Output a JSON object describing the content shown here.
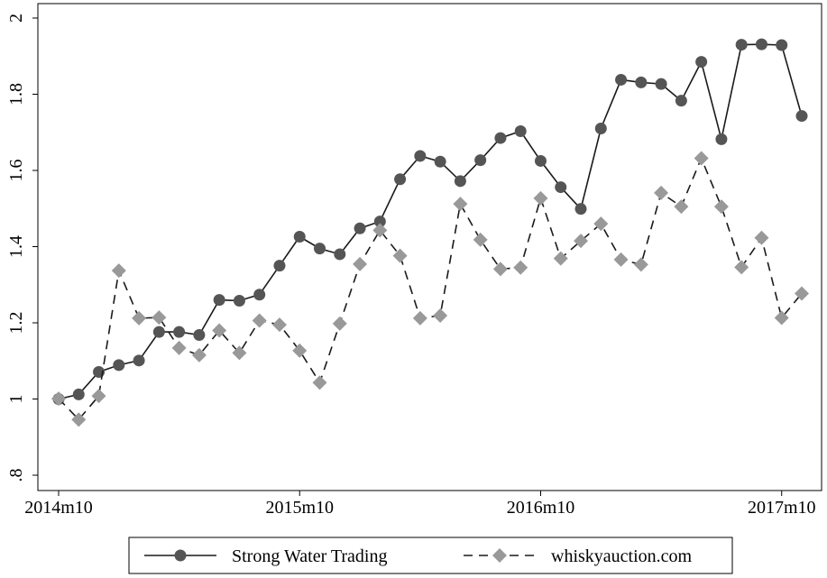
{
  "chart_data": {
    "type": "line",
    "title": "",
    "xlabel": "",
    "ylabel": "",
    "x": [
      "2014m10",
      "2014m11",
      "2014m12",
      "2015m1",
      "2015m2",
      "2015m3",
      "2015m4",
      "2015m5",
      "2015m6",
      "2015m7",
      "2015m8",
      "2015m9",
      "2015m10",
      "2015m11",
      "2015m12",
      "2016m1",
      "2016m2",
      "2016m3",
      "2016m4",
      "2016m5",
      "2016m6",
      "2016m7",
      "2016m8",
      "2016m9",
      "2016m10",
      "2016m11",
      "2016m12",
      "2017m1",
      "2017m2",
      "2017m3",
      "2017m4",
      "2017m5",
      "2017m6",
      "2017m7",
      "2017m8",
      "2017m9",
      "2017m10",
      "2017m11"
    ],
    "xticks": [
      "2014m10",
      "2015m10",
      "2016m10",
      "2017m10"
    ],
    "ylim": [
      0.8,
      2.0
    ],
    "yticks": [
      ".8",
      "1",
      "1.2",
      "1.4",
      "1.6",
      "1.8",
      "2"
    ],
    "grid": false,
    "legend_position": "bottom",
    "series": [
      {
        "name": "Strong Water Trading",
        "color": "#1a1a1a",
        "marker_color": "#555555",
        "marker": "circle",
        "line_style": "solid",
        "values": [
          1.0,
          1.012,
          1.071,
          1.089,
          1.101,
          1.176,
          1.176,
          1.168,
          1.26,
          1.258,
          1.274,
          1.35,
          1.426,
          1.395,
          1.38,
          1.448,
          1.466,
          1.577,
          1.638,
          1.623,
          1.572,
          1.627,
          1.685,
          1.703,
          1.625,
          1.556,
          1.499,
          1.71,
          1.838,
          1.831,
          1.827,
          1.783,
          1.885,
          1.682,
          1.93,
          1.931,
          1.929,
          1.743
        ]
      },
      {
        "name": "whiskyauction.com",
        "color": "#1a1a1a",
        "marker_color": "#999999",
        "marker": "diamond",
        "line_style": "dashed",
        "values": [
          1.001,
          0.946,
          1.008,
          1.337,
          1.212,
          1.214,
          1.134,
          1.115,
          1.18,
          1.121,
          1.206,
          1.195,
          1.127,
          1.043,
          1.198,
          1.354,
          1.443,
          1.376,
          1.212,
          1.219,
          1.512,
          1.418,
          1.341,
          1.345,
          1.527,
          1.369,
          1.415,
          1.46,
          1.366,
          1.353,
          1.541,
          1.505,
          1.632,
          1.505,
          1.346,
          1.423,
          1.213,
          1.277
        ]
      }
    ]
  }
}
